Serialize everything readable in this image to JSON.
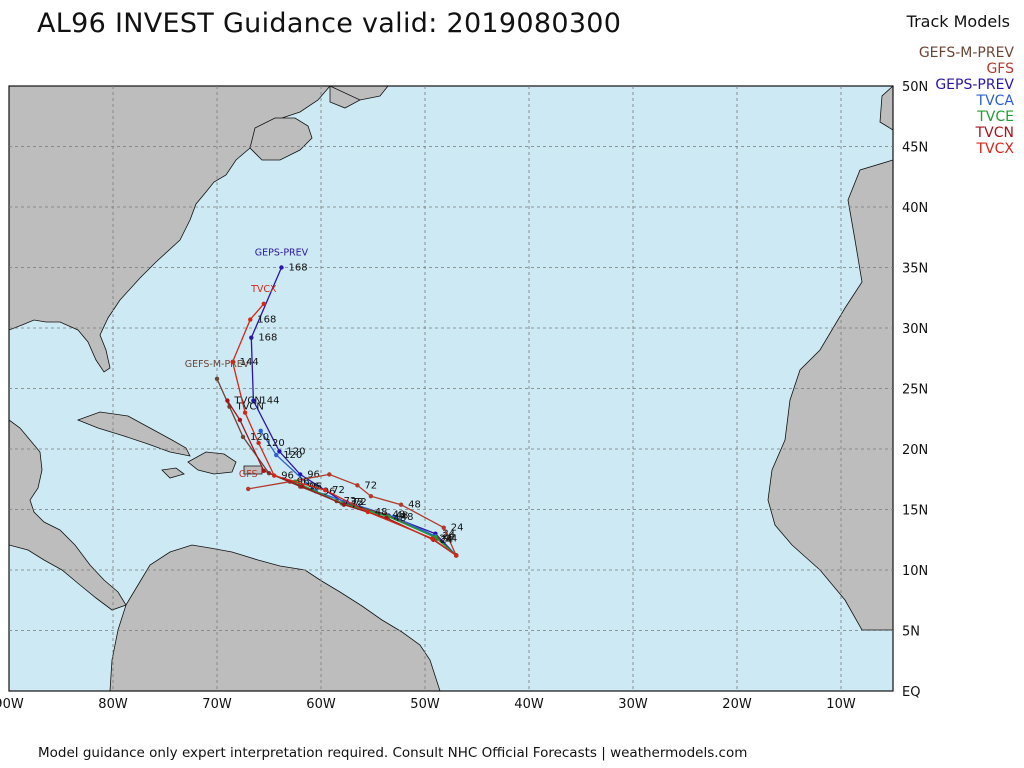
{
  "title": "AL96 INVEST Guidance valid: 2019080300",
  "legend_title": "Track Models",
  "footer": "Model guidance only expert interpretation required. Consult NHC Official Forecasts | weathermodels.com",
  "colors": {
    "ocean": "#cde9f3",
    "land": "#bdbdbd",
    "coast": "#111111",
    "grid": "#7a7a7a"
  },
  "models": [
    {
      "name": "GEFS-M-PREV",
      "color": "#6b4636"
    },
    {
      "name": "GFS",
      "color": "#b23a2a"
    },
    {
      "name": "GEPS-PREV",
      "color": "#2a16a6"
    },
    {
      "name": "TVCA",
      "color": "#2b5fd6"
    },
    {
      "name": "TVCE",
      "color": "#1f9e2f"
    },
    {
      "name": "TVCN",
      "color": "#a5141c"
    },
    {
      "name": "TVCX",
      "color": "#d42718"
    }
  ],
  "map": {
    "lon_range": [
      -90,
      -5
    ],
    "lat_range": [
      0,
      50
    ],
    "lat_labels": [
      "EQ",
      "5N",
      "10N",
      "15N",
      "20N",
      "25N",
      "30N",
      "35N",
      "40N",
      "45N",
      "50N"
    ],
    "lon_labels": [
      "90W",
      "80W",
      "70W",
      "60W",
      "50W",
      "40W",
      "30W",
      "20W",
      "10W"
    ]
  },
  "tracks": [
    {
      "model": "GEPS-PREV",
      "color": "#2a16a6",
      "tag": "GEPS-PREV",
      "points": [
        {
          "lon": -47.0,
          "lat": 11.2,
          "label": ""
        },
        {
          "lon": -49.0,
          "lat": 13.0,
          "label": "24"
        },
        {
          "lon": -53.5,
          "lat": 14.5,
          "label": "48"
        },
        {
          "lon": -57.8,
          "lat": 15.6,
          "label": "72"
        },
        {
          "lon": -62.0,
          "lat": 17.9,
          "label": "96"
        },
        {
          "lon": -64.0,
          "lat": 19.8,
          "label": "120"
        },
        {
          "lon": -66.5,
          "lat": 24.0,
          "label": "144"
        },
        {
          "lon": -66.7,
          "lat": 29.2,
          "label": "168"
        },
        {
          "lon": -63.8,
          "lat": 35.0,
          "label": "168"
        }
      ]
    },
    {
      "model": "TVCA",
      "color": "#2b5fd6",
      "tag": "",
      "points": [
        {
          "lon": -47.0,
          "lat": 11.2,
          "label": ""
        },
        {
          "lon": -49.0,
          "lat": 12.8,
          "label": "24"
        },
        {
          "lon": -53.0,
          "lat": 14.4,
          "label": "48"
        },
        {
          "lon": -57.5,
          "lat": 15.6,
          "label": "72"
        },
        {
          "lon": -60.5,
          "lat": 16.5,
          "label": "96"
        },
        {
          "lon": -64.3,
          "lat": 19.5,
          "label": "120"
        },
        {
          "lon": -65.8,
          "lat": 21.5,
          "label": ""
        }
      ]
    },
    {
      "model": "GFS",
      "color": "#b23a2a",
      "tag": "GFS",
      "points": [
        {
          "lon": -47.0,
          "lat": 11.2,
          "label": ""
        },
        {
          "lon": -48.2,
          "lat": 13.5,
          "label": "24"
        },
        {
          "lon": -52.3,
          "lat": 15.4,
          "label": "48"
        },
        {
          "lon": -55.2,
          "lat": 16.1,
          "label": ""
        },
        {
          "lon": -56.5,
          "lat": 17.0,
          "label": "72"
        },
        {
          "lon": -59.2,
          "lat": 17.9,
          "label": ""
        },
        {
          "lon": -63.0,
          "lat": 17.3,
          "label": "96"
        },
        {
          "lon": -67.0,
          "lat": 16.7,
          "label": ""
        }
      ]
    },
    {
      "model": "GEFS-M-PREV",
      "color": "#6b4636",
      "tag": "GEFS-M-PREV",
      "points": [
        {
          "lon": -47.0,
          "lat": 11.2,
          "label": ""
        },
        {
          "lon": -48.8,
          "lat": 12.6,
          "label": "24"
        },
        {
          "lon": -53.8,
          "lat": 14.6,
          "label": "48"
        },
        {
          "lon": -58.5,
          "lat": 15.7,
          "label": "72"
        },
        {
          "lon": -62.0,
          "lat": 16.9,
          "label": "96"
        },
        {
          "lon": -65.0,
          "lat": 18.0,
          "label": ""
        },
        {
          "lon": -67.5,
          "lat": 21.0,
          "label": "120"
        },
        {
          "lon": -68.8,
          "lat": 23.5,
          "label": "TVCN"
        },
        {
          "lon": -70.0,
          "lat": 25.8,
          "label": ""
        }
      ]
    },
    {
      "model": "TVCE",
      "color": "#1f9e2f",
      "tag": "",
      "points": [
        {
          "lon": -47.0,
          "lat": 11.2,
          "label": ""
        },
        {
          "lon": -49.0,
          "lat": 12.7,
          "label": ""
        },
        {
          "lon": -53.5,
          "lat": 14.4,
          "label": ""
        },
        {
          "lon": -58.0,
          "lat": 15.5,
          "label": ""
        },
        {
          "lon": -62.5,
          "lat": 17.3,
          "label": ""
        }
      ]
    },
    {
      "model": "TVCN",
      "color": "#a5141c",
      "tag": "",
      "points": [
        {
          "lon": -47.0,
          "lat": 11.2,
          "label": ""
        },
        {
          "lon": -49.2,
          "lat": 12.5,
          "label": "24"
        },
        {
          "lon": -53.7,
          "lat": 14.3,
          "label": "48"
        },
        {
          "lon": -57.8,
          "lat": 15.4,
          "label": "72"
        },
        {
          "lon": -61.8,
          "lat": 16.9,
          "label": "96"
        },
        {
          "lon": -65.5,
          "lat": 18.2,
          "label": ""
        },
        {
          "lon": -67.8,
          "lat": 22.4,
          "label": ""
        },
        {
          "lon": -69.0,
          "lat": 24.0,
          "label": "TVCN"
        }
      ]
    },
    {
      "model": "TVCX",
      "color": "#d42718",
      "tag": "TVCX",
      "points": [
        {
          "lon": -47.0,
          "lat": 11.2,
          "label": ""
        },
        {
          "lon": -49.3,
          "lat": 12.6,
          "label": "24"
        },
        {
          "lon": -55.5,
          "lat": 14.8,
          "label": "48"
        },
        {
          "lon": -59.6,
          "lat": 16.6,
          "label": "72"
        },
        {
          "lon": -64.5,
          "lat": 17.8,
          "label": "96"
        },
        {
          "lon": -66.0,
          "lat": 20.5,
          "label": "120"
        },
        {
          "lon": -67.3,
          "lat": 23.0,
          "label": ""
        },
        {
          "lon": -68.5,
          "lat": 27.2,
          "label": "144"
        },
        {
          "lon": -66.8,
          "lat": 30.7,
          "label": "168"
        },
        {
          "lon": -65.5,
          "lat": 32.0,
          "label": ""
        }
      ]
    }
  ]
}
